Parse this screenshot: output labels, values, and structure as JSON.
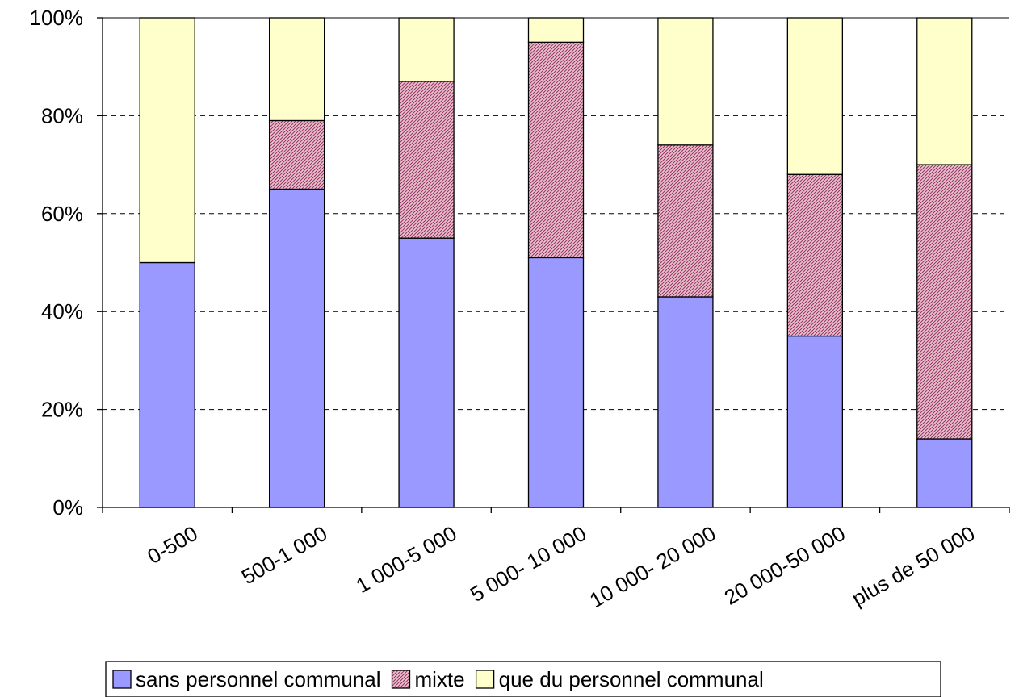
{
  "chart_data": {
    "type": "bar",
    "stacked": true,
    "normalized": true,
    "title": "",
    "xlabel": "",
    "ylabel": "",
    "categories": [
      "0-500",
      "500-1 000",
      "1 000-5 000",
      "5 000- 10 000",
      "10 000- 20 000",
      "20 000-50 000",
      "plus de 50 000"
    ],
    "y_ticks": [
      "0%",
      "20%",
      "40%",
      "60%",
      "80%",
      "100%"
    ],
    "ylim": [
      0,
      100
    ],
    "grid": "horizontal dashed",
    "legend_position": "bottom",
    "series": [
      {
        "name": "sans personnel communal",
        "values": [
          50,
          65,
          55,
          51,
          43,
          35,
          14
        ],
        "color": "#9999ff",
        "pattern": "solid"
      },
      {
        "name": "mixte",
        "values": [
          0,
          14,
          32,
          44,
          31,
          33,
          56
        ],
        "color": "#993366",
        "pattern": "hatched"
      },
      {
        "name": "que du personnel communal",
        "values": [
          50,
          21,
          13,
          5,
          26,
          32,
          30
        ],
        "color": "#ffffcc",
        "pattern": "solid"
      }
    ]
  }
}
